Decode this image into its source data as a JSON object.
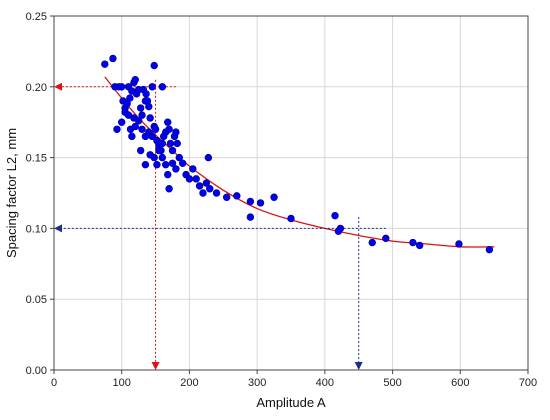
{
  "chart_data": {
    "type": "scatter",
    "title": "",
    "xlabel": "Amplitude A",
    "ylabel": "Spacing factor L2, mm",
    "xlim": [
      0,
      700
    ],
    "ylim": [
      0,
      0.25
    ],
    "x_ticks": [
      0,
      100,
      200,
      300,
      400,
      500,
      600,
      700
    ],
    "y_ticks": [
      0.0,
      0.05,
      0.1,
      0.15,
      0.2,
      0.25
    ],
    "x_tick_labels": [
      "0",
      "100",
      "200",
      "300",
      "400",
      "500",
      "600",
      "700"
    ],
    "y_tick_labels": [
      "0.00",
      "0.05",
      "0.10",
      "0.15",
      "0.20",
      "0.25"
    ],
    "grid": true,
    "legend": "none",
    "colors": {
      "points": "#0000ee",
      "fit": "#dd1111",
      "guide_red": "#dd1111",
      "guide_blue": "#1a2f8f",
      "grid": "#d8d8d8"
    },
    "series": [
      {
        "points": [
          [
            75,
            0.216
          ],
          [
            87,
            0.22
          ],
          [
            90,
            0.2
          ],
          [
            96,
            0.2
          ],
          [
            100,
            0.2
          ],
          [
            102,
            0.19
          ],
          [
            105,
            0.185
          ],
          [
            108,
            0.188
          ],
          [
            110,
            0.2
          ],
          [
            112,
            0.192
          ],
          [
            115,
            0.197
          ],
          [
            118,
            0.203
          ],
          [
            120,
            0.205
          ],
          [
            122,
            0.195
          ],
          [
            125,
            0.198
          ],
          [
            128,
            0.185
          ],
          [
            130,
            0.18
          ],
          [
            132,
            0.198
          ],
          [
            135,
            0.19
          ],
          [
            136,
            0.195
          ],
          [
            138,
            0.19
          ],
          [
            140,
            0.186
          ],
          [
            142,
            0.178
          ],
          [
            145,
            0.2
          ],
          [
            148,
            0.215
          ],
          [
            100,
            0.175
          ],
          [
            105,
            0.182
          ],
          [
            110,
            0.18
          ],
          [
            113,
            0.17
          ],
          [
            118,
            0.178
          ],
          [
            120,
            0.172
          ],
          [
            125,
            0.176
          ],
          [
            130,
            0.17
          ],
          [
            135,
            0.165
          ],
          [
            140,
            0.168
          ],
          [
            145,
            0.165
          ],
          [
            148,
            0.172
          ],
          [
            150,
            0.17
          ],
          [
            152,
            0.162
          ],
          [
            155,
            0.158
          ],
          [
            158,
            0.155
          ],
          [
            160,
            0.16
          ],
          [
            162,
            0.165
          ],
          [
            165,
            0.168
          ],
          [
            168,
            0.175
          ],
          [
            170,
            0.17
          ],
          [
            172,
            0.16
          ],
          [
            175,
            0.155
          ],
          [
            178,
            0.165
          ],
          [
            180,
            0.168
          ],
          [
            182,
            0.16
          ],
          [
            128,
            0.155
          ],
          [
            135,
            0.145
          ],
          [
            142,
            0.152
          ],
          [
            148,
            0.15
          ],
          [
            152,
            0.145
          ],
          [
            155,
            0.155
          ],
          [
            160,
            0.15
          ],
          [
            165,
            0.145
          ],
          [
            168,
            0.138
          ],
          [
            170,
            0.128
          ],
          [
            175,
            0.146
          ],
          [
            180,
            0.142
          ],
          [
            185,
            0.15
          ],
          [
            190,
            0.146
          ],
          [
            195,
            0.138
          ],
          [
            200,
            0.135
          ],
          [
            205,
            0.142
          ],
          [
            210,
            0.135
          ],
          [
            215,
            0.13
          ],
          [
            220,
            0.125
          ],
          [
            225,
            0.132
          ],
          [
            228,
            0.15
          ],
          [
            230,
            0.128
          ],
          [
            240,
            0.125
          ],
          [
            255,
            0.122
          ],
          [
            270,
            0.123
          ],
          [
            290,
            0.119
          ],
          [
            290,
            0.108
          ],
          [
            305,
            0.118
          ],
          [
            325,
            0.122
          ],
          [
            350,
            0.107
          ],
          [
            415,
            0.109
          ],
          [
            420,
            0.098
          ],
          [
            423,
            0.1
          ],
          [
            470,
            0.09
          ],
          [
            490,
            0.093
          ],
          [
            530,
            0.09
          ],
          [
            540,
            0.088
          ],
          [
            598,
            0.089
          ],
          [
            643,
            0.085
          ],
          [
            93,
            0.17
          ],
          [
            115,
            0.165
          ],
          [
            160,
            0.2
          ]
        ]
      }
    ],
    "fit_curve": {
      "x": [
        75,
        100,
        125,
        150,
        175,
        200,
        250,
        300,
        350,
        400,
        450,
        500,
        550,
        600,
        650
      ],
      "y": [
        0.207,
        0.192,
        0.178,
        0.166,
        0.155,
        0.144,
        0.127,
        0.114,
        0.106,
        0.1,
        0.095,
        0.091,
        0.089,
        0.087,
        0.087
      ]
    },
    "guide_lines": [
      {
        "color": "red",
        "x_value": 150,
        "y_value": 0.2
      },
      {
        "color": "blue",
        "x_value": 450,
        "y_value": 0.1
      }
    ]
  }
}
